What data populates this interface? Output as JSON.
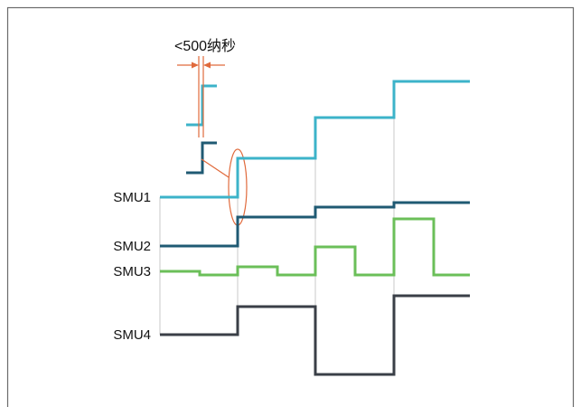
{
  "annotation": {
    "timing_label": "<500纳秒"
  },
  "signals": [
    {
      "label": "SMU1",
      "color": "#3cb3c9"
    },
    {
      "label": "SMU2",
      "color": "#1f5a73"
    },
    {
      "label": "SMU3",
      "color": "#6bbf59"
    },
    {
      "label": "SMU4",
      "color": "#3a3f47"
    }
  ],
  "colors": {
    "frame": "#6b6b6b",
    "gridline": "#c9c9c9",
    "annotation": "#e06a3c"
  }
}
